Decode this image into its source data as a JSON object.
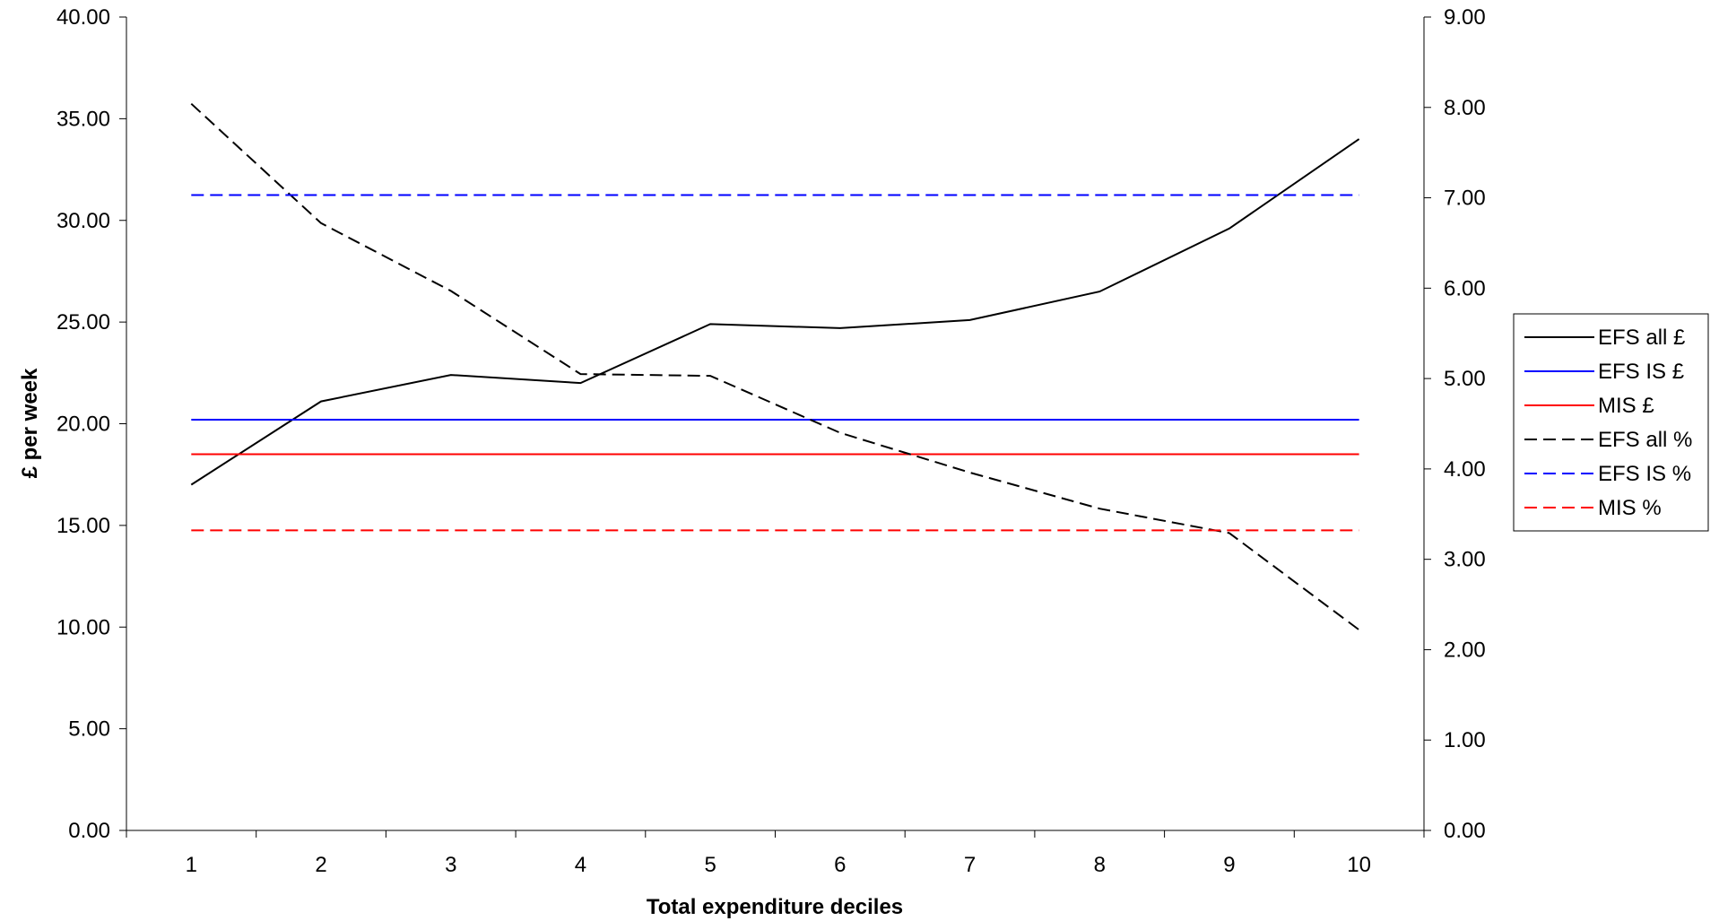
{
  "chart_data": {
    "type": "line",
    "title": "",
    "xlabel": "Total expenditure deciles",
    "ylabel": "£ per week",
    "y2label": "",
    "categories": [
      "1",
      "2",
      "3",
      "4",
      "5",
      "6",
      "7",
      "8",
      "9",
      "10"
    ],
    "ylim": [
      0,
      40
    ],
    "y2lim": [
      0,
      9
    ],
    "yticks": [
      "0.00",
      "5.00",
      "10.00",
      "15.00",
      "20.00",
      "25.00",
      "30.00",
      "35.00",
      "40.00"
    ],
    "y2ticks": [
      "0.00",
      "1.00",
      "2.00",
      "3.00",
      "4.00",
      "5.00",
      "6.00",
      "7.00",
      "8.00",
      "9.00"
    ],
    "grid": false,
    "legend_position": "right",
    "series": [
      {
        "name": "EFS all £",
        "axis": "left",
        "color": "#000000",
        "dash": "solid",
        "values": [
          17.0,
          21.1,
          22.4,
          22.0,
          24.9,
          24.7,
          25.1,
          26.5,
          29.6,
          34.0
        ]
      },
      {
        "name": "EFS IS £",
        "axis": "left",
        "color": "#0000ff",
        "dash": "solid",
        "values": [
          20.2,
          20.2,
          20.2,
          20.2,
          20.2,
          20.2,
          20.2,
          20.2,
          20.2,
          20.2
        ]
      },
      {
        "name": "MIS £",
        "axis": "left",
        "color": "#ff0000",
        "dash": "solid",
        "values": [
          18.5,
          18.5,
          18.5,
          18.5,
          18.5,
          18.5,
          18.5,
          18.5,
          18.5,
          18.5
        ]
      },
      {
        "name": "EFS all %",
        "axis": "right",
        "color": "#000000",
        "dash": "dashed",
        "values": [
          8.04,
          6.72,
          5.97,
          5.05,
          5.03,
          4.4,
          3.96,
          3.56,
          3.29,
          2.22
        ]
      },
      {
        "name": "EFS IS %",
        "axis": "right",
        "color": "#0000ff",
        "dash": "dashed",
        "values": [
          7.03,
          7.03,
          7.03,
          7.03,
          7.03,
          7.03,
          7.03,
          7.03,
          7.03,
          7.03
        ]
      },
      {
        "name": "MIS %",
        "axis": "right",
        "color": "#ff0000",
        "dash": "dashed",
        "values": [
          3.32,
          3.32,
          3.32,
          3.32,
          3.32,
          3.32,
          3.32,
          3.32,
          3.32,
          3.32
        ]
      }
    ]
  }
}
